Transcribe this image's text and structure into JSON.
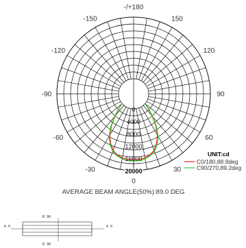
{
  "chart_data": {
    "type": "polar",
    "angle_labels": [
      {
        "angle": 180,
        "text": "-/+180"
      },
      {
        "angle": -150,
        "text": "-150"
      },
      {
        "angle": 150,
        "text": "150"
      },
      {
        "angle": -120,
        "text": "-120"
      },
      {
        "angle": 120,
        "text": "120"
      },
      {
        "angle": -90,
        "text": "-90"
      },
      {
        "angle": 90,
        "text": "90"
      },
      {
        "angle": -60,
        "text": "-60"
      },
      {
        "angle": 60,
        "text": "60"
      },
      {
        "angle": -30,
        "text": "-30"
      },
      {
        "angle": 30,
        "text": "30"
      },
      {
        "angle": 0,
        "text": "0"
      }
    ],
    "radial_ticks": [
      {
        "value": 0,
        "text": "0"
      },
      {
        "value": 4000,
        "text": "4000"
      },
      {
        "value": 8000,
        "text": "8000"
      },
      {
        "value": 12000,
        "text": "12000"
      },
      {
        "value": 16000,
        "text": "16000"
      },
      {
        "value": 20000,
        "text": "20000"
      }
    ],
    "r_max": 20000,
    "unit": "UNIT:cd",
    "series": [
      {
        "name": "C0/180,88.9deg",
        "color": "#e8232a",
        "angles": [
          0,
          5,
          10,
          15,
          20,
          25,
          30,
          35,
          40,
          45,
          50
        ],
        "values": [
          16500,
          16450,
          16200,
          15600,
          14600,
          12800,
          10600,
          7600,
          4500,
          1900,
          0
        ]
      },
      {
        "name": "C90/270,89.2deg",
        "color": "#2ad12a",
        "angles": [
          0,
          5,
          10,
          15,
          20,
          25,
          30,
          35,
          40,
          45,
          50
        ],
        "values": [
          16900,
          16850,
          16550,
          15950,
          14950,
          13200,
          11000,
          8000,
          4800,
          2100,
          0
        ]
      }
    ],
    "beam_angle_text": "AVERAGE BEAM ANGLE(50%):89.0 DEG"
  },
  "diagram": {
    "top_label": "B 90",
    "bottom_label": "B 90",
    "left_label": "A 0",
    "right_label": "A 0"
  }
}
